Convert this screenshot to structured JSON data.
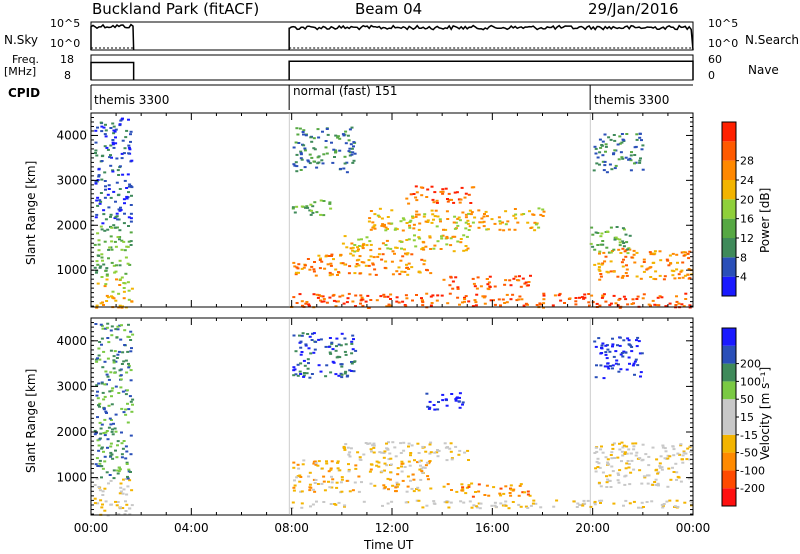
{
  "header": {
    "station": "Buckland Park (fitACF)",
    "beam": "Beam 04",
    "date": "29/Jan/2016"
  },
  "noise_panel": {
    "left_label": "N.Sky",
    "right_label": "N.Search",
    "left_ticks": [
      "10^5",
      "10^0"
    ],
    "right_ticks": [
      "10^5",
      "10^0"
    ]
  },
  "freq_panel": {
    "left_label_line1": "Freq.",
    "left_label_line2": "[MHz]",
    "right_label": "Nave",
    "left_ticks": [
      "18",
      "8"
    ],
    "right_ticks": [
      "60",
      "0"
    ]
  },
  "cpid_label": "CPID",
  "chart_data": [
    {
      "type": "heatmap",
      "name": "power",
      "ylabel": "Slant Range [km]",
      "xlabel": "",
      "ylim": [
        180,
        4500
      ],
      "yticks": [
        1000,
        2000,
        3000,
        4000
      ],
      "colorbar": {
        "label": "Power [dB]",
        "ticks": [
          "4",
          "8",
          "12",
          "16",
          "20",
          "24",
          "28"
        ],
        "colors": [
          "#1a1aff",
          "#2a4fb8",
          "#3f8a5a",
          "#56a843",
          "#8fcf3a",
          "#f2b400",
          "#ff8800",
          "#ff5a00",
          "#ff2000"
        ]
      },
      "modes": [
        {
          "label": "themis 3300",
          "start_hour": 0.0,
          "end_hour": 1.7
        },
        {
          "label": "normal (fast) 151",
          "start_hour": 7.9,
          "end_hour": 19.9
        },
        {
          "label": "themis 3300",
          "start_hour": 19.9,
          "end_hour": 24.0
        }
      ],
      "blobs": [
        {
          "h0": 0.1,
          "h1": 1.6,
          "r0": 180,
          "r1": 900,
          "level": 5
        },
        {
          "h0": 0.1,
          "h1": 1.6,
          "r0": 900,
          "r1": 2000,
          "level": 3
        },
        {
          "h0": 0.1,
          "h1": 1.6,
          "r0": 2000,
          "r1": 4400,
          "level": 1
        },
        {
          "h0": 7.9,
          "h1": 23.9,
          "r0": 180,
          "r1": 500,
          "level": 7
        },
        {
          "h0": 8.0,
          "h1": 13.5,
          "r0": 900,
          "r1": 1400,
          "level": 6
        },
        {
          "h0": 10.0,
          "h1": 15.0,
          "r0": 1400,
          "r1": 1800,
          "level": 5
        },
        {
          "h0": 12.5,
          "h1": 15.2,
          "r0": 2500,
          "r1": 2900,
          "level": 7
        },
        {
          "h0": 14.0,
          "h1": 17.5,
          "r0": 600,
          "r1": 900,
          "level": 7
        },
        {
          "h0": 11.0,
          "h1": 18.0,
          "r0": 1900,
          "r1": 2400,
          "level": 5
        },
        {
          "h0": 8.0,
          "h1": 9.5,
          "r0": 2200,
          "r1": 2600,
          "level": 3
        },
        {
          "h0": 8.0,
          "h1": 10.5,
          "r0": 3200,
          "r1": 4200,
          "level": 2
        },
        {
          "h0": 20.0,
          "h1": 23.9,
          "r0": 800,
          "r1": 1500,
          "level": 6
        },
        {
          "h0": 19.8,
          "h1": 21.5,
          "r0": 1400,
          "r1": 2000,
          "level": 3
        },
        {
          "h0": 20.0,
          "h1": 22.0,
          "r0": 3200,
          "r1": 4100,
          "level": 2
        }
      ]
    },
    {
      "type": "heatmap",
      "name": "velocity",
      "ylabel": "Slant Range [km]",
      "xlabel": "Time UT",
      "ylim": [
        180,
        4500
      ],
      "yticks": [
        1000,
        2000,
        3000,
        4000
      ],
      "xticks": [
        "00:00",
        "04:00",
        "08:00",
        "12:00",
        "16:00",
        "20:00",
        "00:00"
      ],
      "colorbar": {
        "label": "Velocity [m s⁻¹]",
        "ticks": [
          "-200",
          "-100",
          "-50",
          "-15",
          "15",
          "50",
          "100",
          "200"
        ],
        "colors": [
          "#ff1010",
          "#ff4a00",
          "#ff8a00",
          "#f3b400",
          "#c8c8c8",
          "#c8c8c8",
          "#7ac943",
          "#3f8a5a",
          "#2a4fb8",
          "#1a1aff"
        ]
      },
      "blobs": [
        {
          "h0": 0.1,
          "h1": 1.6,
          "r0": 180,
          "r1": 1000,
          "level": 4
        },
        {
          "h0": 0.1,
          "h1": 1.6,
          "r0": 1000,
          "r1": 4400,
          "level": 7
        },
        {
          "h0": 7.9,
          "h1": 23.9,
          "r0": 350,
          "r1": 520,
          "level": 4
        },
        {
          "h0": 8.0,
          "h1": 13.5,
          "r0": 700,
          "r1": 1400,
          "level": 3
        },
        {
          "h0": 10.0,
          "h1": 15.0,
          "r0": 1400,
          "r1": 1800,
          "level": 4
        },
        {
          "h0": 13.2,
          "h1": 14.8,
          "r0": 2500,
          "r1": 2900,
          "level": 9
        },
        {
          "h0": 14.0,
          "h1": 17.5,
          "r0": 600,
          "r1": 900,
          "level": 2
        },
        {
          "h0": 8.0,
          "h1": 10.5,
          "r0": 3200,
          "r1": 4200,
          "level": 8
        },
        {
          "h0": 20.0,
          "h1": 23.9,
          "r0": 800,
          "r1": 1800,
          "level": 4
        },
        {
          "h0": 20.0,
          "h1": 22.0,
          "r0": 3200,
          "r1": 4100,
          "level": 9
        }
      ]
    }
  ],
  "noise_series": {
    "segments": [
      {
        "h0": 0.0,
        "h1": 1.7,
        "level": 0.85
      },
      {
        "h0": 7.9,
        "h1": 24.0,
        "level": 0.8
      }
    ]
  },
  "freq_series": {
    "segments": [
      {
        "h0": 0.0,
        "h1": 1.7,
        "level": 0.7
      },
      {
        "h0": 7.9,
        "h1": 24.0,
        "level": 0.75
      }
    ]
  }
}
